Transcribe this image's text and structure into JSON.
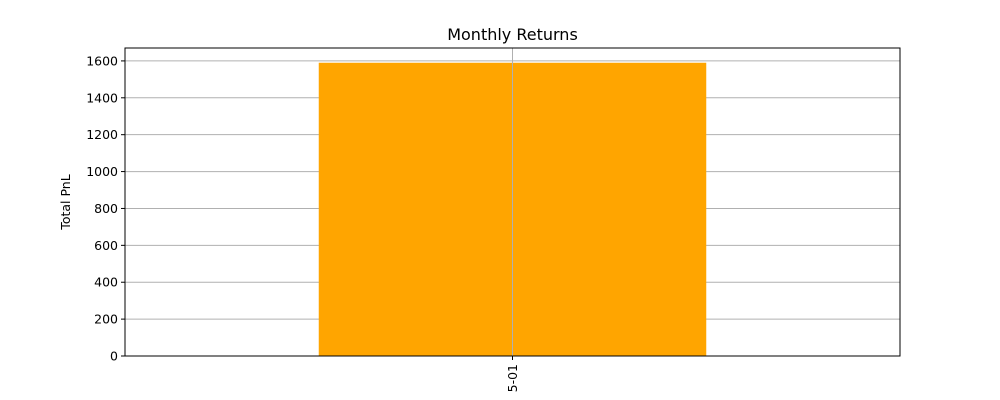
{
  "chart_data": {
    "type": "bar",
    "title": "Monthly Returns",
    "xlabel": "",
    "ylabel": "Total PnL",
    "categories": [
      "5-01"
    ],
    "values": [
      1590
    ],
    "ylim": [
      0,
      1670
    ],
    "yticks": [
      0,
      200,
      400,
      600,
      800,
      1000,
      1200,
      1400,
      1600
    ],
    "grid": true,
    "bar_color": "#ffa500"
  }
}
